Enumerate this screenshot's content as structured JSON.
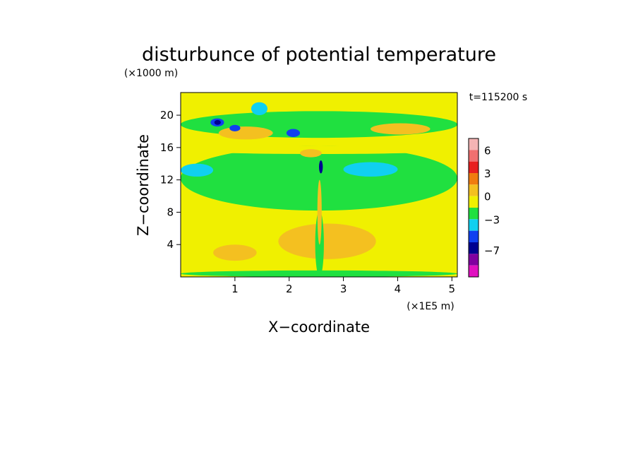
{
  "chart_data": {
    "type": "heatmap",
    "title": "disturbunce of potential temperature",
    "xlabel": "X−coordinate",
    "ylabel": "Z−coordinate",
    "x_unit": "(×1E5 m)",
    "y_unit": "(×1000 m)",
    "time_label": "t=115200 s",
    "xlim": [
      0,
      5.1
    ],
    "ylim": [
      0,
      22.8
    ],
    "x_ticks": [
      {
        "value": 1,
        "label": "1"
      },
      {
        "value": 2,
        "label": "2"
      },
      {
        "value": 3,
        "label": "3"
      },
      {
        "value": 4,
        "label": "4"
      },
      {
        "value": 5,
        "label": "5"
      }
    ],
    "y_ticks": [
      {
        "value": 4,
        "label": "4"
      },
      {
        "value": 8,
        "label": "8"
      },
      {
        "value": 12,
        "label": "12"
      },
      {
        "value": 16,
        "label": "16"
      },
      {
        "value": 20,
        "label": "20"
      }
    ],
    "colorbar": {
      "levels": [
        7.5,
        6,
        4.5,
        3,
        1.5,
        0,
        -1.5,
        -3,
        -4.5,
        -6,
        -7.5,
        -9
      ],
      "colors": [
        "#f4b4b4",
        "#f07070",
        "#e82020",
        "#f07c10",
        "#f4c020",
        "#f0f000",
        "#20e040",
        "#10d0f0",
        "#1040f0",
        "#000090",
        "#8000a0",
        "#e010c0"
      ],
      "labels": [
        {
          "level": 6,
          "label": "6"
        },
        {
          "level": 3,
          "label": "3"
        },
        {
          "level": 0,
          "label": "0"
        },
        {
          "level": -3,
          "label": "−3"
        },
        {
          "level": -7,
          "label": "−7"
        }
      ]
    },
    "background_level": 0,
    "regions": [
      {
        "name": "upper-green-band",
        "x": [
          0,
          5.1
        ],
        "y": [
          17.2,
          20.5
        ],
        "level": -1.5
      },
      {
        "name": "mid-green-band",
        "x": [
          0,
          5.1
        ],
        "y": [
          8.2,
          16.2
        ],
        "level": -1.5
      },
      {
        "name": "mid-yellow-band",
        "x": [
          0,
          5.1
        ],
        "y": [
          15.2,
          16.2
        ],
        "level": 0
      },
      {
        "name": "cyan-band-left",
        "x": [
          0,
          0.6
        ],
        "y": [
          12.4,
          14.0
        ],
        "level": -3
      },
      {
        "name": "cyan-band-right",
        "x": [
          3.0,
          4.0
        ],
        "y": [
          12.4,
          14.2
        ],
        "level": -3
      },
      {
        "name": "cyan-patch-top",
        "x": [
          1.3,
          1.6
        ],
        "y": [
          20.0,
          21.6
        ],
        "level": -3
      },
      {
        "name": "orange-low-center",
        "x": [
          1.8,
          3.6
        ],
        "y": [
          2.2,
          6.6
        ],
        "level": 1.5
      },
      {
        "name": "orange-low-left",
        "x": [
          0.6,
          1.4
        ],
        "y": [
          2.0,
          4.0
        ],
        "level": 1.5
      },
      {
        "name": "orange-upper-left",
        "x": [
          0.7,
          1.7
        ],
        "y": [
          17.0,
          18.6
        ],
        "level": 1.5
      },
      {
        "name": "orange-upper-right",
        "x": [
          3.5,
          4.6
        ],
        "y": [
          17.6,
          19.0
        ],
        "level": 1.5
      },
      {
        "name": "orange-mid",
        "x": [
          2.2,
          2.6
        ],
        "y": [
          14.8,
          15.8
        ],
        "level": 1.5
      },
      {
        "name": "blue-vortex-1",
        "x": [
          0.55,
          0.8
        ],
        "y": [
          18.6,
          19.6
        ],
        "level": -4.5
      },
      {
        "name": "blue-vortex-2",
        "x": [
          0.9,
          1.1
        ],
        "y": [
          18.0,
          18.8
        ],
        "level": -4.5
      },
      {
        "name": "blue-vortex-3",
        "x": [
          1.95,
          2.2
        ],
        "y": [
          17.3,
          18.3
        ],
        "level": -4.5
      },
      {
        "name": "dark-core-1",
        "x": [
          0.62,
          0.74
        ],
        "y": [
          18.8,
          19.4
        ],
        "level": -6
      },
      {
        "name": "blue-jet-core",
        "x": [
          2.55,
          2.62
        ],
        "y": [
          12.8,
          14.4
        ],
        "level": -6
      },
      {
        "name": "surface-green-strip",
        "x": [
          0,
          5.1
        ],
        "y": [
          0,
          0.8
        ],
        "level": -1.5
      },
      {
        "name": "column-green",
        "x": [
          2.48,
          2.64
        ],
        "y": [
          0,
          8.2
        ],
        "level": -1.5
      },
      {
        "name": "column-orange",
        "x": [
          2.52,
          2.6
        ],
        "y": [
          4.0,
          12.0
        ],
        "level": 1.5
      }
    ]
  }
}
